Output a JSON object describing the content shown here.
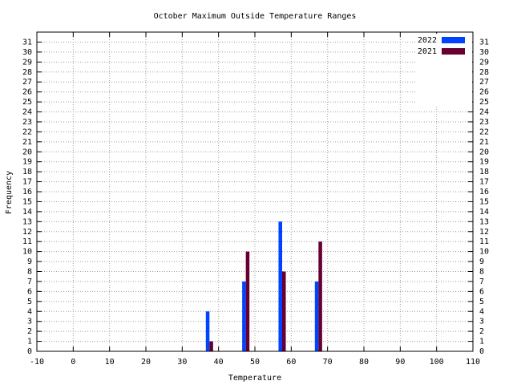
{
  "chart_data": {
    "type": "bar",
    "title": "October Maximum Outside Temperature Ranges",
    "xlabel": "Temperature",
    "ylabel": "Frequency",
    "series": [
      {
        "name": "2022",
        "color": "#0044ff",
        "x": [
          37,
          47,
          57,
          67
        ],
        "values": [
          4,
          7,
          13,
          7
        ]
      },
      {
        "name": "2021",
        "color": "#660033",
        "x": [
          38,
          48,
          58,
          68
        ],
        "values": [
          1,
          10,
          8,
          11
        ]
      }
    ],
    "bar_width": 1,
    "xlim": [
      -10,
      110
    ],
    "xticks": [
      -10,
      0,
      10,
      20,
      30,
      40,
      50,
      60,
      70,
      80,
      90,
      100,
      110
    ],
    "ylim": [
      0,
      32
    ],
    "yticks": [
      0,
      1,
      2,
      3,
      4,
      5,
      6,
      7,
      8,
      9,
      10,
      11,
      12,
      13,
      14,
      15,
      16,
      17,
      18,
      19,
      20,
      21,
      22,
      23,
      24,
      25,
      26,
      27,
      28,
      29,
      30,
      31
    ],
    "y2lim": [
      0,
      32
    ],
    "y2ticks": [
      0,
      1,
      2,
      3,
      4,
      5,
      6,
      7,
      8,
      9,
      10,
      11,
      12,
      13,
      14,
      15,
      16,
      17,
      18,
      19,
      20,
      21,
      22,
      23,
      24,
      25,
      26,
      27,
      28,
      29,
      30,
      31
    ],
    "grid": true,
    "legend": "top-right"
  }
}
